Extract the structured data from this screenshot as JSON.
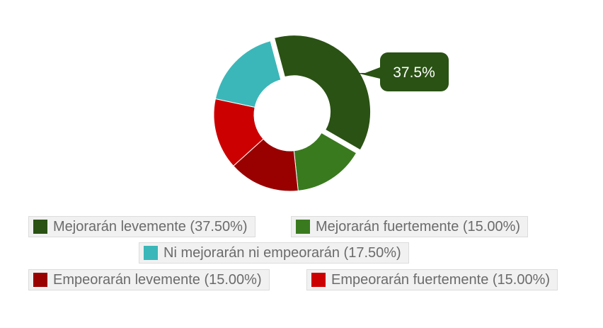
{
  "chart_data": {
    "type": "pie",
    "subtype": "donut",
    "categories": [
      "Mejorarán levemente",
      "Mejorarán fuertemente",
      "Empeorarán levemente",
      "Empeorarán fuertemente",
      "Ni mejorarán ni empeorarán"
    ],
    "values": [
      37.5,
      15.0,
      15.0,
      15.0,
      17.5
    ],
    "colors": [
      "#2a5214",
      "#3a7a1e",
      "#990000",
      "#cc0000",
      "#3bb7b9"
    ],
    "tooltip": {
      "label": "37.5%",
      "category": "Mejorarán levemente"
    },
    "legend": {
      "placement": "bottom",
      "items": [
        "Mejorarán levemente (37.50%)",
        "Mejorarán fuertemente (15.00%)",
        "Ni mejorarán ni empeorarán (17.50%)",
        "Empeorarán levemente (15.00%)",
        "Empeorarán fuertemente (15.00%)"
      ]
    }
  }
}
